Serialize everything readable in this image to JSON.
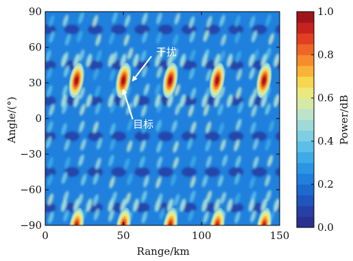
{
  "chart_data": {
    "type": "heatmap",
    "title": "",
    "xlabel": "Range/km",
    "ylabel": "Angle/(°)",
    "xlim": [
      0,
      150
    ],
    "ylim": [
      -90,
      90
    ],
    "xticks": [
      0,
      50,
      100,
      150
    ],
    "yticks": [
      -90,
      -60,
      -30,
      0,
      30,
      60,
      90
    ],
    "grid": false,
    "colorbar": {
      "label": "Power/dB",
      "range": [
        0.0,
        1.0
      ],
      "ticks": [
        "0.0",
        "0.2",
        "0.4",
        "0.6",
        "0.8",
        "1.0"
      ],
      "colors": [
        "#2b2f8f",
        "#2640a6",
        "#1f55bd",
        "#1c6ad0",
        "#1f80dd",
        "#2a96e3",
        "#3fabe6",
        "#5cbfe7",
        "#7dcfe3",
        "#9fdad9",
        "#bde4c8",
        "#d7e9a6",
        "#ece97c",
        "#f7d650",
        "#fbb238",
        "#f78c2c",
        "#ef6527",
        "#e23f22",
        "#c7221e",
        "#a1141a"
      ]
    },
    "peaks": [
      {
        "range_km": 20,
        "angle_deg": 32,
        "power": 1.0
      },
      {
        "range_km": 50,
        "angle_deg": 32,
        "power": 1.0
      },
      {
        "range_km": 80,
        "angle_deg": 32,
        "power": 1.0
      },
      {
        "range_km": 110,
        "angle_deg": 32,
        "power": 1.0
      },
      {
        "range_km": 140,
        "angle_deg": 32,
        "power": 1.0
      },
      {
        "range_km": 20,
        "angle_deg": -90,
        "power": 0.95
      },
      {
        "range_km": 50,
        "angle_deg": -90,
        "power": 0.95
      },
      {
        "range_km": 80,
        "angle_deg": -90,
        "power": 0.95
      },
      {
        "range_km": 110,
        "angle_deg": -90,
        "power": 0.95
      },
      {
        "range_km": 140,
        "angle_deg": -90,
        "power": 0.95
      }
    ],
    "annotations": [
      {
        "text": "干扰",
        "range_km": 70,
        "angle_deg": 56,
        "arrow_to": {
          "range_km": 56,
          "angle_deg": 32
        }
      },
      {
        "text": "目标",
        "range_km": 57,
        "angle_deg": -5,
        "arrow_to": {
          "range_km": 50,
          "angle_deg": 24
        }
      }
    ]
  }
}
